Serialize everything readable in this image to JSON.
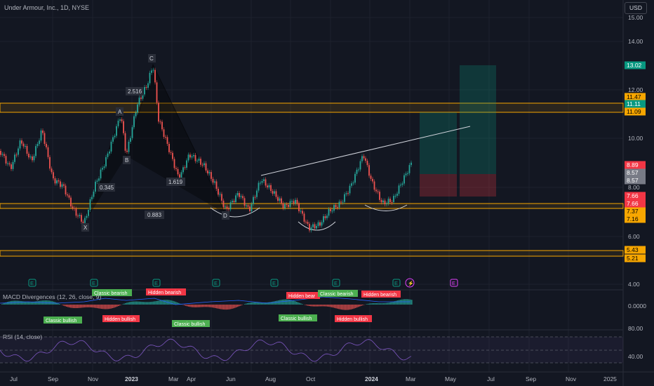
{
  "header": {
    "symbol_label": "Under Armour, Inc., 1D, NYSE"
  },
  "currency_button": "USD",
  "price_axis": {
    "ticks": [
      "15.00",
      "14.00",
      "12.00",
      "10.00",
      "8.00",
      "6.00",
      "4.00"
    ],
    "badges": [
      {
        "text": "13.02",
        "bg": "#089981",
        "fg": "#ffffff"
      },
      {
        "text": "11.47",
        "bg": "#f7a600",
        "fg": "#000000"
      },
      {
        "text": "11.11",
        "bg": "#089981",
        "fg": "#ffffff"
      },
      {
        "text": "11.09",
        "bg": "#f7a600",
        "fg": "#000000"
      },
      {
        "text": "8.89",
        "bg": "#f23645",
        "fg": "#ffffff"
      },
      {
        "text": "8.57",
        "bg": "#787b86",
        "fg": "#ffffff"
      },
      {
        "text": "8.57",
        "bg": "#787b86",
        "fg": "#ffffff"
      },
      {
        "text": "7.66",
        "bg": "#f23645",
        "fg": "#ffffff"
      },
      {
        "text": "7.66",
        "bg": "#f23645",
        "fg": "#ffffff"
      },
      {
        "text": "7.37",
        "bg": "#f7a600",
        "fg": "#000000"
      },
      {
        "text": "7.16",
        "bg": "#f7a600",
        "fg": "#000000"
      },
      {
        "text": "5.43",
        "bg": "#f7a600",
        "fg": "#000000"
      },
      {
        "text": "5.21",
        "bg": "#f7a600",
        "fg": "#000000"
      }
    ]
  },
  "time_axis": {
    "labels": [
      "Jul",
      "Sep",
      "Nov",
      "2023",
      "Mar",
      "Apr",
      "Jun",
      "Aug",
      "Oct",
      "2024",
      "Mar",
      "May",
      "Jul",
      "Sep",
      "Nov",
      "2025"
    ]
  },
  "pattern_labels": [
    "C",
    "2.516",
    "A",
    "B",
    "0.345",
    "1.619",
    "X",
    "0.883",
    "D"
  ],
  "macd": {
    "title": "MACD Divergences (12, 26, close, 9)",
    "axis_value": "0.0000",
    "signals": [
      {
        "text": "Classic bearish",
        "kind": "bull"
      },
      {
        "text": "Hidden bearish",
        "kind": "bear"
      },
      {
        "text": "Classic bullish",
        "kind": "bull"
      },
      {
        "text": "Hidden bullish",
        "kind": "bear"
      },
      {
        "text": "Classic bullish",
        "kind": "bull"
      },
      {
        "text": "Hidden bear",
        "kind": "bear"
      },
      {
        "text": "Classic bearish",
        "kind": "bull"
      },
      {
        "text": "Hidden bearish",
        "kind": "bear"
      },
      {
        "text": "Classic bullish",
        "kind": "bull"
      },
      {
        "text": "Hidden bullish",
        "kind": "bear"
      }
    ]
  },
  "rsi": {
    "title": "RSI (14, close)",
    "ticks": [
      "80.00",
      "40.00"
    ]
  },
  "earnings_marker": "E",
  "colors": {
    "up": "#26a69a",
    "down": "#ef5350",
    "zone": "#f7a600",
    "profit": "#089981",
    "loss": "#f23645",
    "rsi": "#7e57c2"
  }
}
